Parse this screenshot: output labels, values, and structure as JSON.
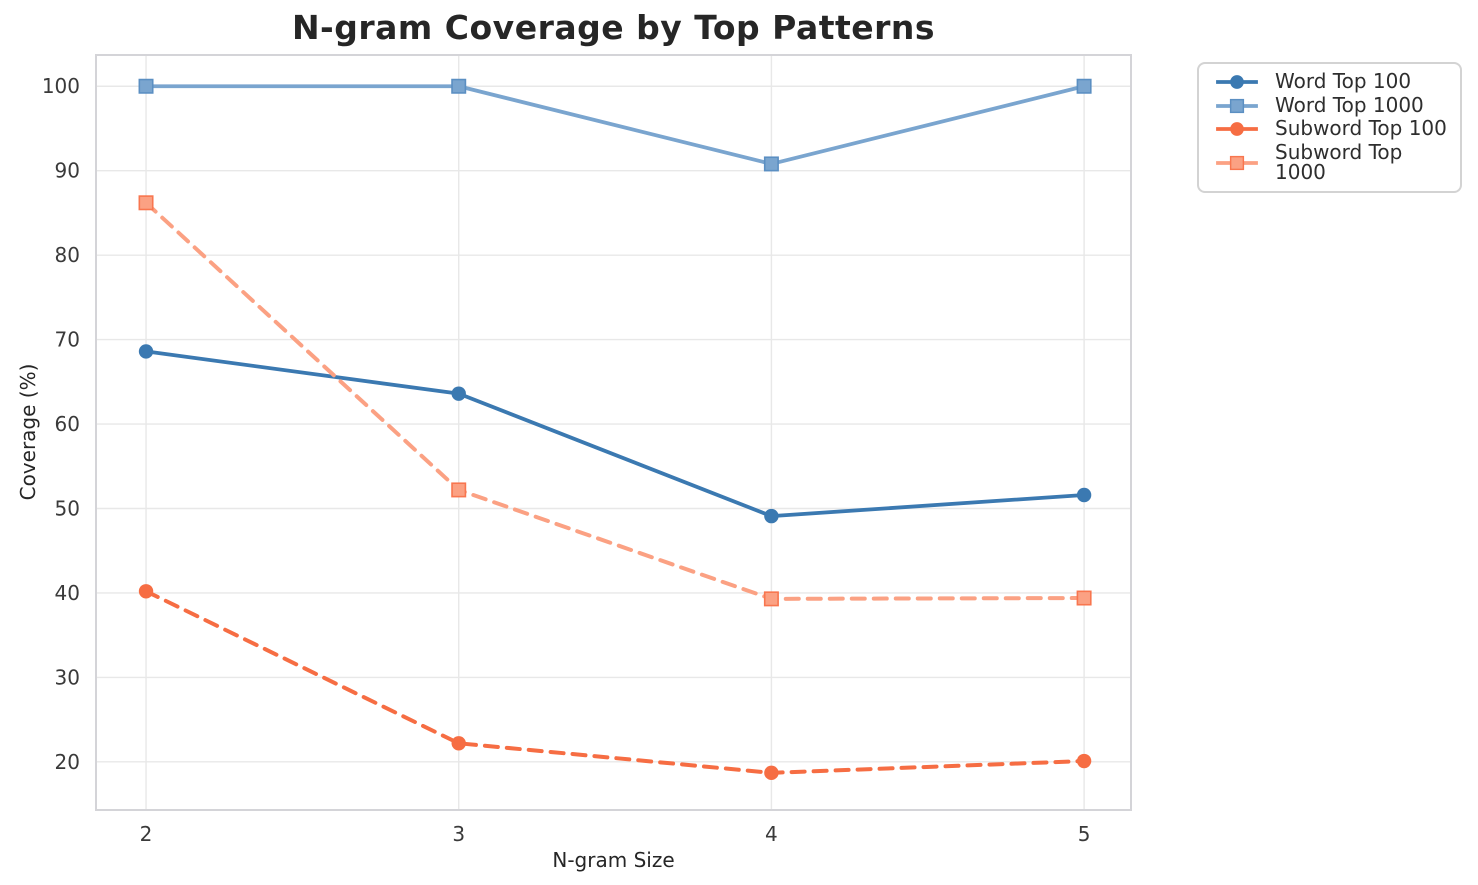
{
  "chart_data": {
    "type": "line",
    "title": "N-gram Coverage by Top Patterns",
    "xlabel": "N-gram Size",
    "ylabel": "Coverage (%)",
    "x": [
      2,
      3,
      4,
      5
    ],
    "x_tick_labels": [
      "2",
      "3",
      "4",
      "5"
    ],
    "y_ticks": [
      20,
      30,
      40,
      50,
      60,
      70,
      80,
      90,
      100
    ],
    "xlim": [
      1.84,
      5.15
    ],
    "ylim": [
      14.3,
      103.7
    ],
    "grid": true,
    "legend_position": "outside-top-right",
    "series": [
      {
        "name": "Word Top 100",
        "color": "#3b79b1",
        "marker": "circle",
        "marker_edge": "#3b79b1",
        "line_style": "solid",
        "values": [
          68.6,
          63.6,
          49.1,
          51.6
        ]
      },
      {
        "name": "Word Top 1000",
        "color": "#7aa5cf",
        "marker": "square",
        "marker_edge": "#5b8fc2",
        "line_style": "solid",
        "values": [
          100.0,
          100.0,
          90.8,
          100.0
        ]
      },
      {
        "name": "Subword Top 100",
        "color": "#f66d43",
        "marker": "circle",
        "marker_edge": "#f66d43",
        "line_style": "dashed",
        "values": [
          40.2,
          22.2,
          18.7,
          20.1
        ]
      },
      {
        "name": "Subword Top 1000",
        "color": "#fba183",
        "marker": "square",
        "marker_edge": "#f8764f",
        "line_style": "dashed",
        "values": [
          86.2,
          52.2,
          39.3,
          39.4
        ]
      }
    ],
    "style": {
      "background": "#ffffff",
      "grid_color": "#e8e8e8",
      "spine_color": "#d4d4d8",
      "tick_color": "#3a3a3a",
      "label_color": "#262626",
      "title_color": "#262626"
    }
  }
}
